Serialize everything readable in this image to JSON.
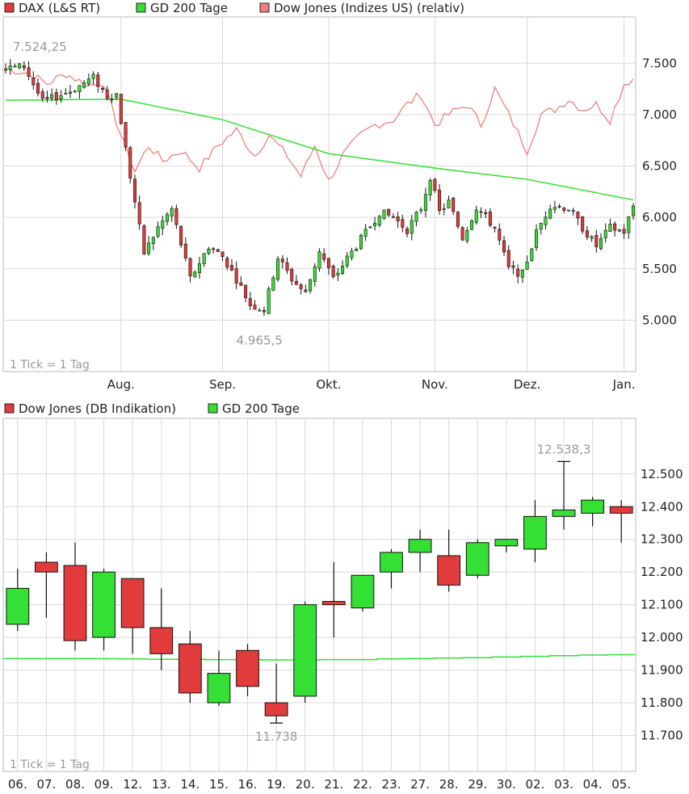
{
  "chart_data": [
    {
      "type": "candlestick",
      "legend": [
        {
          "label": "DAX (L&S RT)",
          "color": "#e23b3b"
        },
        {
          "label": "GD 200 Tage",
          "color": "#34e034"
        },
        {
          "label": "Dow Jones (Indizes US) (relativ)",
          "color": "#f08080"
        }
      ],
      "tick_note": "1 Tick = 1 Tag",
      "ylim": [
        4500,
        7950
      ],
      "y_ticks": [
        5000,
        5500,
        6000,
        6500,
        7000,
        7500
      ],
      "y_tick_labels": [
        "5.000",
        "5.500",
        "6.000",
        "6.500",
        "7.000",
        "7.500"
      ],
      "x_labels": [
        "Aug.",
        "Sep.",
        "Okt.",
        "Nov.",
        "Dez.",
        "Jan."
      ],
      "x_label_day_index": [
        25,
        47,
        70,
        93,
        113,
        134
      ],
      "n_days": 137,
      "annotations": [
        {
          "text": "7.524,25",
          "day": 6,
          "value": 7524
        },
        {
          "text": "4.965,5",
          "day": 55,
          "value": 4966
        }
      ],
      "gd200_anchor_values": [
        [
          0,
          7140
        ],
        [
          25,
          7150
        ],
        [
          47,
          6950
        ],
        [
          70,
          6620
        ],
        [
          93,
          6480
        ],
        [
          113,
          6370
        ],
        [
          136,
          6170
        ]
      ],
      "dax_anchor_closes": [
        [
          0,
          7450
        ],
        [
          4,
          7470
        ],
        [
          8,
          7120
        ],
        [
          14,
          7230
        ],
        [
          19,
          7360
        ],
        [
          22,
          7180
        ],
        [
          24,
          7200
        ],
        [
          27,
          6400
        ],
        [
          30,
          5650
        ],
        [
          33,
          5900
        ],
        [
          36,
          6080
        ],
        [
          40,
          5400
        ],
        [
          44,
          5720
        ],
        [
          47,
          5620
        ],
        [
          50,
          5400
        ],
        [
          53,
          5150
        ],
        [
          56,
          5100
        ],
        [
          59,
          5610
        ],
        [
          62,
          5400
        ],
        [
          65,
          5260
        ],
        [
          68,
          5680
        ],
        [
          71,
          5400
        ],
        [
          74,
          5600
        ],
        [
          78,
          5850
        ],
        [
          81,
          6050
        ],
        [
          84,
          6000
        ],
        [
          87,
          5880
        ],
        [
          90,
          6090
        ],
        [
          92,
          6400
        ],
        [
          94,
          6050
        ],
        [
          96,
          6150
        ],
        [
          99,
          5800
        ],
        [
          102,
          6100
        ],
        [
          106,
          5900
        ],
        [
          109,
          5500
        ],
        [
          112,
          5450
        ],
        [
          115,
          5850
        ],
        [
          118,
          6120
        ],
        [
          122,
          6090
        ],
        [
          125,
          5900
        ],
        [
          128,
          5720
        ],
        [
          131,
          5900
        ],
        [
          134,
          5860
        ],
        [
          136,
          6110
        ]
      ],
      "dow_relative_anchor_values": [
        [
          0,
          7450
        ],
        [
          5,
          7400
        ],
        [
          9,
          7300
        ],
        [
          13,
          7400
        ],
        [
          18,
          7280
        ],
        [
          21,
          7320
        ],
        [
          25,
          6800
        ],
        [
          28,
          6450
        ],
        [
          31,
          6700
        ],
        [
          34,
          6550
        ],
        [
          38,
          6650
        ],
        [
          42,
          6480
        ],
        [
          46,
          6700
        ],
        [
          50,
          6850
        ],
        [
          54,
          6600
        ],
        [
          57,
          6800
        ],
        [
          61,
          6600
        ],
        [
          64,
          6400
        ],
        [
          67,
          6700
        ],
        [
          70,
          6350
        ],
        [
          73,
          6600
        ],
        [
          77,
          6800
        ],
        [
          80,
          6900
        ],
        [
          84,
          6950
        ],
        [
          87,
          7100
        ],
        [
          90,
          7200
        ],
        [
          93,
          6900
        ],
        [
          96,
          7000
        ],
        [
          100,
          7100
        ],
        [
          103,
          6900
        ],
        [
          106,
          7250
        ],
        [
          109,
          7000
        ],
        [
          113,
          6650
        ],
        [
          116,
          7000
        ],
        [
          119,
          7050
        ],
        [
          122,
          7150
        ],
        [
          125,
          7050
        ],
        [
          128,
          7100
        ],
        [
          131,
          6950
        ],
        [
          134,
          7300
        ],
        [
          136,
          7350
        ]
      ]
    },
    {
      "type": "candlestick",
      "legend": [
        {
          "label": "Dow Jones (DB Indikation)",
          "color": "#e23b3b"
        },
        {
          "label": "GD 200 Tage",
          "color": "#34e034"
        }
      ],
      "tick_note": "1 Tick = 1 Tag",
      "ylim": [
        11590,
        12670
      ],
      "y_ticks": [
        11700,
        11800,
        11900,
        12000,
        12100,
        12200,
        12300,
        12400,
        12500
      ],
      "y_tick_labels": [
        "11.700",
        "11.800",
        "11.900",
        "12.000",
        "12.100",
        "12.200",
        "12.300",
        "12.400",
        "12.500"
      ],
      "categories": [
        "06.",
        "07.",
        "08.",
        "09.",
        "12.",
        "13.",
        "14.",
        "15.",
        "16.",
        "19.",
        "20.",
        "21.",
        "22.",
        "23.",
        "27.",
        "28.",
        "29.",
        "30.",
        "02.",
        "03.",
        "04.",
        "05."
      ],
      "open": [
        12040,
        12230,
        12220,
        12000,
        12180,
        12030,
        11980,
        11800,
        11960,
        11800,
        11820,
        12110,
        12090,
        12200,
        12260,
        12250,
        12190,
        12280,
        12270,
        12370,
        12380,
        12400
      ],
      "high": [
        12210,
        12260,
        12290,
        12210,
        12180,
        12150,
        12020,
        11960,
        11980,
        11920,
        12110,
        12230,
        12190,
        12270,
        12330,
        12330,
        12300,
        12300,
        12420,
        12538,
        12430,
        12420
      ],
      "low": [
        12020,
        12060,
        11960,
        11960,
        11950,
        11900,
        11800,
        11790,
        11820,
        11738,
        11800,
        12000,
        12080,
        12150,
        12200,
        12140,
        12180,
        12260,
        12230,
        12330,
        12340,
        12290
      ],
      "close": [
        12150,
        12200,
        11990,
        12200,
        12030,
        11950,
        11830,
        11890,
        11850,
        11760,
        12100,
        12100,
        12190,
        12260,
        12300,
        12160,
        12290,
        12300,
        12370,
        12390,
        12420,
        12380
      ],
      "gd200": [
        11935,
        11935,
        11935,
        11935,
        11934,
        11933,
        11933,
        11932,
        11932,
        11931,
        11931,
        11932,
        11932,
        11934,
        11935,
        11937,
        11938,
        11940,
        11942,
        11944,
        11946,
        11947
      ],
      "annotations": [
        {
          "text": "12.538,3",
          "index": 19,
          "value": 12538
        },
        {
          "text": "11.738",
          "index": 9,
          "value": 11738
        }
      ]
    }
  ]
}
